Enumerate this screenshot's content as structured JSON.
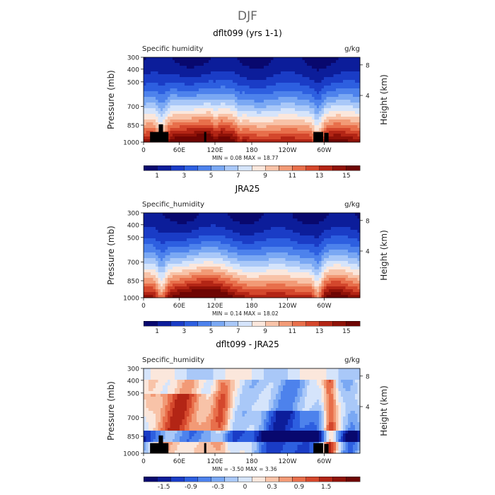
{
  "figure_title": "DJF",
  "colors": {
    "humidity_scale": [
      "#08086e",
      "#0c1d9a",
      "#1a3cc6",
      "#2d5fe0",
      "#4d82ec",
      "#7aa8f3",
      "#a9c8f8",
      "#d5e4fb",
      "#fbe7dc",
      "#f8c3a8",
      "#f29a76",
      "#e86f4b",
      "#d4472c",
      "#b32515",
      "#8f1208",
      "#6e0503"
    ],
    "diff_scale": [
      "#08086e",
      "#0c1d9a",
      "#1a3cc6",
      "#2d5fe0",
      "#4d82ec",
      "#7aa8f3",
      "#a9c8f8",
      "#d5e4fb",
      "#fbe7dc",
      "#f8c3a8",
      "#f29a76",
      "#e86f4b",
      "#d4472c",
      "#b32515",
      "#8f1208",
      "#6e0503"
    ],
    "topography": "#000000"
  },
  "chart_data": [
    {
      "type": "heatmap",
      "title": "dflt099 (yrs 1-1)",
      "left_label": "Specific humidity",
      "right_label": "g/kg",
      "ylabel": "Pressure (mb)",
      "ylabel_right": "Height (km)",
      "x_ticks": [
        "0",
        "60E",
        "120E",
        "180",
        "120W",
        "60W"
      ],
      "y_ticks": [
        "300",
        "400",
        "500",
        "700",
        "850",
        "1000"
      ],
      "height_ticks": [
        "8",
        "4"
      ],
      "min_max": "MIN =     0.08   MAX =   18.77",
      "colorbar_labels": [
        "1",
        "3",
        "5",
        "7",
        "9",
        "11",
        "13",
        "15"
      ],
      "has_topography": true
    },
    {
      "type": "heatmap",
      "title": "JRA25",
      "left_label": "Specific_humidity",
      "right_label": "g/kg",
      "ylabel": "Pressure (mb)",
      "ylabel_right": "Height (km)",
      "x_ticks": [
        "0",
        "60E",
        "120E",
        "180",
        "120W",
        "60W"
      ],
      "y_ticks": [
        "300",
        "400",
        "500",
        "700",
        "850",
        "1000"
      ],
      "height_ticks": [
        "8",
        "4"
      ],
      "min_max": "MIN =     0.14   MAX =   18.02",
      "colorbar_labels": [
        "1",
        "3",
        "5",
        "7",
        "9",
        "11",
        "13",
        "15"
      ],
      "has_topography": false
    },
    {
      "type": "heatmap",
      "title": "dflt099 - JRA25",
      "left_label": "Specific_humidity",
      "right_label": "g/kg",
      "ylabel": "Pressure (mb)",
      "ylabel_right": "Height (km)",
      "x_ticks": [
        "0",
        "60E",
        "120E",
        "180",
        "120W",
        "60W"
      ],
      "y_ticks": [
        "300",
        "400",
        "500",
        "700",
        "850",
        "1000"
      ],
      "height_ticks": [
        "8",
        "4"
      ],
      "min_max": "MIN =    -3.50   MAX =     3.36",
      "colorbar_labels": [
        "-1.5",
        "-0.9",
        "-0.3",
        "0",
        "0.3",
        "0.9",
        "1.5"
      ],
      "has_topography": true
    }
  ]
}
